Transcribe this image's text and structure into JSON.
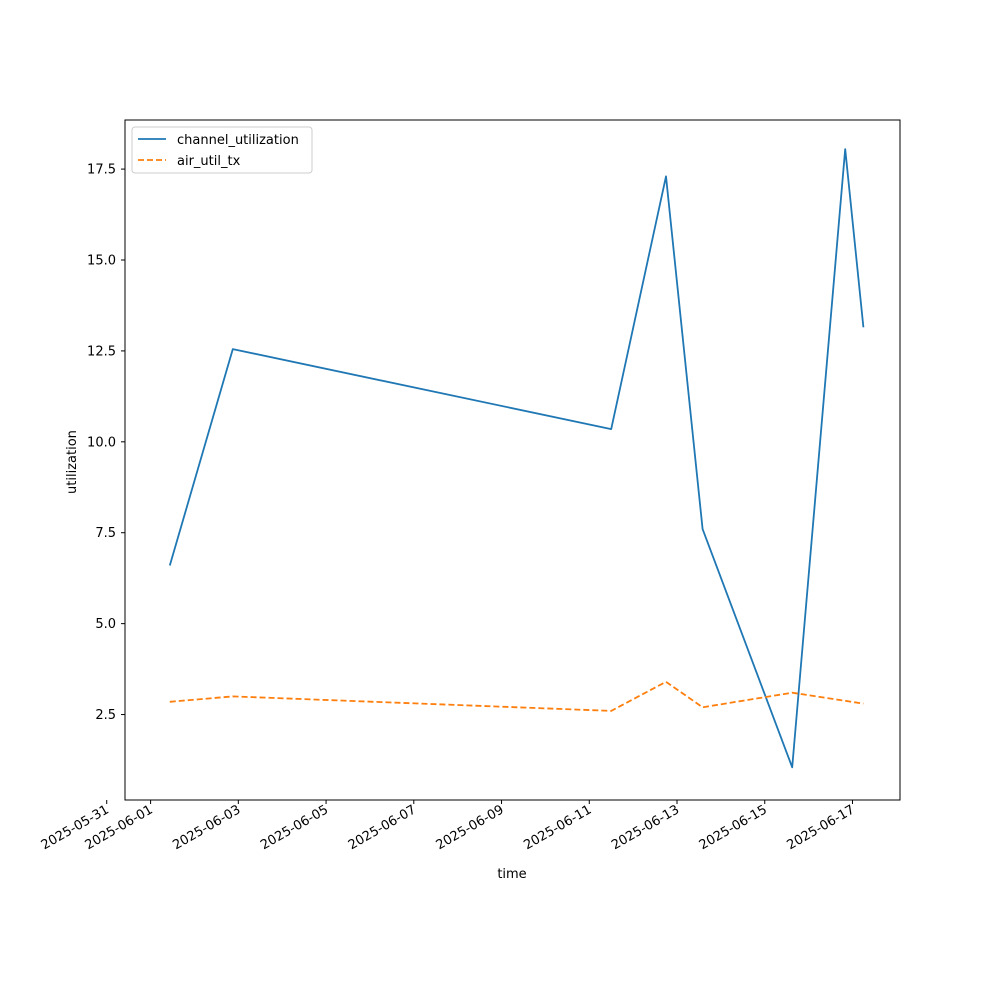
{
  "chart_data": {
    "type": "line",
    "title": "",
    "xlabel": "time",
    "ylabel": "utilization",
    "x_ticks": [
      "2025-05-31",
      "2025-06-01",
      "2025-06-03",
      "2025-06-05",
      "2025-06-07",
      "2025-06-09",
      "2025-06-11",
      "2025-06-13",
      "2025-06-15",
      "2025-06-17"
    ],
    "y_ticks": [
      "2.5",
      "5.0",
      "7.5",
      "10.0",
      "12.5",
      "15.0",
      "17.5"
    ],
    "xlim": [
      "2025-05-31T10:00",
      "2025-06-18T02:00"
    ],
    "ylim": [
      0.15,
      18.85
    ],
    "grid": false,
    "legend_position": "top-left",
    "series": [
      {
        "name": "channel_utilization",
        "color": "#1f77b4",
        "dash": "solid",
        "points": [
          {
            "x": "2025-06-01T10:30",
            "y": 6.6
          },
          {
            "x": "2025-06-02T21:00",
            "y": 12.55
          },
          {
            "x": "2025-06-11T12:00",
            "y": 10.35
          },
          {
            "x": "2025-06-12T18:00",
            "y": 17.3
          },
          {
            "x": "2025-06-13T14:00",
            "y": 7.6
          },
          {
            "x": "2025-06-15T15:00",
            "y": 1.05
          },
          {
            "x": "2025-06-16T20:00",
            "y": 18.05
          },
          {
            "x": "2025-06-17T06:00",
            "y": 13.15
          }
        ]
      },
      {
        "name": "air_util_tx",
        "color": "#ff7f0e",
        "dash": "dashed",
        "points": [
          {
            "x": "2025-06-01T10:30",
            "y": 2.85
          },
          {
            "x": "2025-06-02T21:00",
            "y": 3.0
          },
          {
            "x": "2025-06-11T12:00",
            "y": 2.6
          },
          {
            "x": "2025-06-12T18:00",
            "y": 3.4
          },
          {
            "x": "2025-06-13T14:00",
            "y": 2.7
          },
          {
            "x": "2025-06-15T15:00",
            "y": 3.1
          },
          {
            "x": "2025-06-17T06:00",
            "y": 2.8
          }
        ]
      }
    ]
  }
}
